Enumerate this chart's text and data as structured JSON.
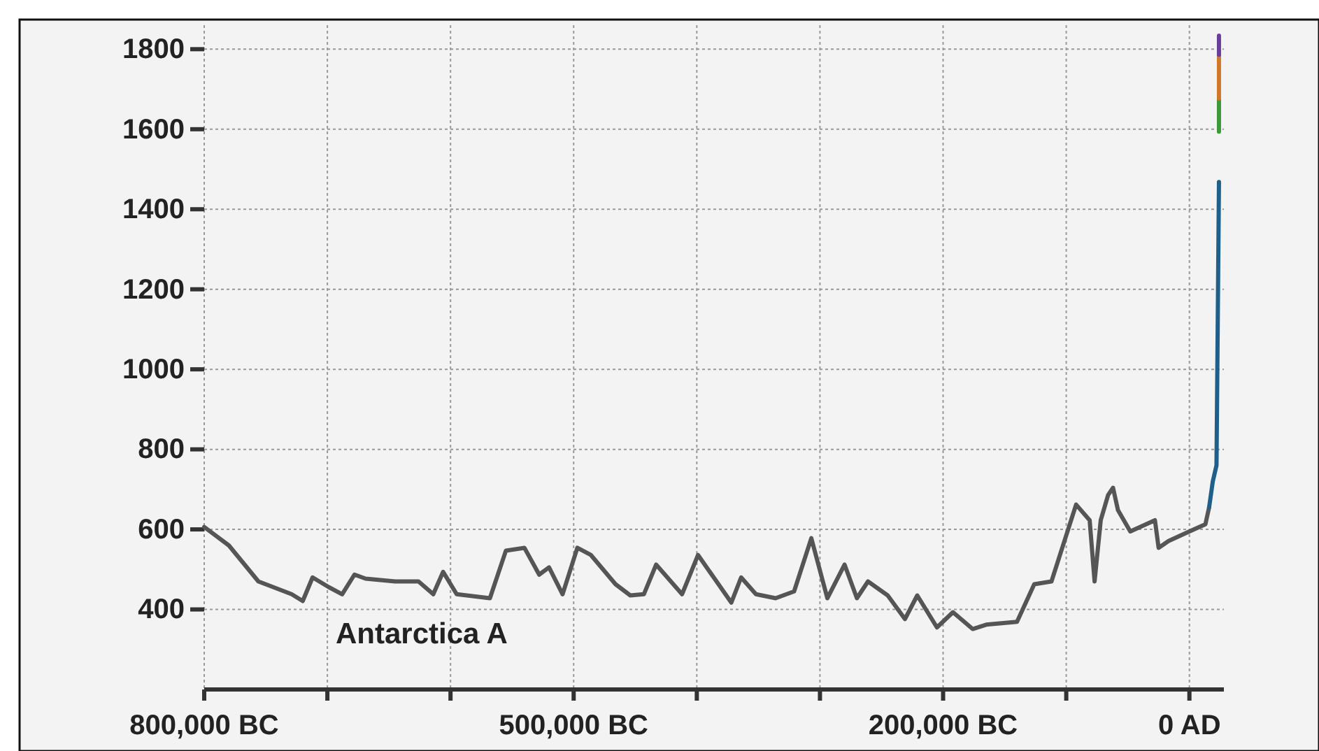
{
  "chart_data": {
    "type": "line",
    "x": [
      -800000,
      -780000,
      -756000,
      -729000,
      -720000,
      -712000,
      -699000,
      -688000,
      -678000,
      -669000,
      -645000,
      -626000,
      -614000,
      -606000,
      -595000,
      -568000,
      -555000,
      -540000,
      -528000,
      -520000,
      -509000,
      -497000,
      -486000,
      -466000,
      -454000,
      -443000,
      -433000,
      -412000,
      -399000,
      -372000,
      -364000,
      -352000,
      -336000,
      -321000,
      -307000,
      -294000,
      -280000,
      -270000,
      -261000,
      -245000,
      -231000,
      -221000,
      -205000,
      -192000,
      -176000,
      -165000,
      -140000,
      -126000,
      -112000,
      -92000,
      -81000,
      -77000,
      -72000,
      -66000,
      -62000,
      -58000,
      -48000,
      -28000,
      -25000,
      -17000,
      0,
      13000,
      16000
    ],
    "series": [
      {
        "color": "#555555",
        "values": [
          606,
          560,
          470,
          438,
          421,
          480,
          456,
          438,
          487,
          477,
          470,
          470,
          438,
          494,
          438,
          428,
          547,
          554,
          487,
          505,
          438,
          554,
          536,
          463,
          435,
          438,
          512,
          438,
          536,
          417,
          480,
          438,
          428,
          445,
          578,
          428,
          512,
          428,
          470,
          435,
          376,
          435,
          355,
          393,
          351,
          362,
          369,
          463,
          470,
          662,
          623,
          470,
          623,
          686,
          704,
          648,
          595,
          623,
          554,
          571,
          595,
          613,
          655
        ]
      },
      {
        "color": "#1f5f8b",
        "x": [
          16000,
          19000,
          22000,
          24000
        ],
        "values": [
          655,
          720,
          760,
          1468
        ]
      },
      {
        "color": "#3a9a3a",
        "x": [
          24000,
          24000
        ],
        "values": [
          1594,
          1677
        ]
      },
      {
        "color": "#d0782a",
        "x": [
          24000,
          24000
        ],
        "values": [
          1677,
          1786
        ]
      },
      {
        "color": "#6a3d9a",
        "x": [
          24000,
          24000
        ],
        "values": [
          1786,
          1834
        ]
      }
    ],
    "xlim": [
      -800000,
      28000
    ],
    "xticks": [
      {
        "value": -800000,
        "label": "800,000 BC"
      },
      {
        "value": -700000,
        "label": null
      },
      {
        "value": -600000,
        "label": null
      },
      {
        "value": -500000,
        "label": "500,000 BC"
      },
      {
        "value": -400000,
        "label": null
      },
      {
        "value": -300000,
        "label": null
      },
      {
        "value": -200000,
        "label": "200,000 BC"
      },
      {
        "value": -100000,
        "label": null
      },
      {
        "value": 0,
        "label": "0 AD"
      }
    ],
    "ylim": [
      200,
      1860
    ],
    "yticks": [
      400,
      600,
      800,
      1000,
      1200,
      1400,
      1600,
      1800
    ],
    "grid": true,
    "annotations": [
      "Antarctica A"
    ]
  }
}
